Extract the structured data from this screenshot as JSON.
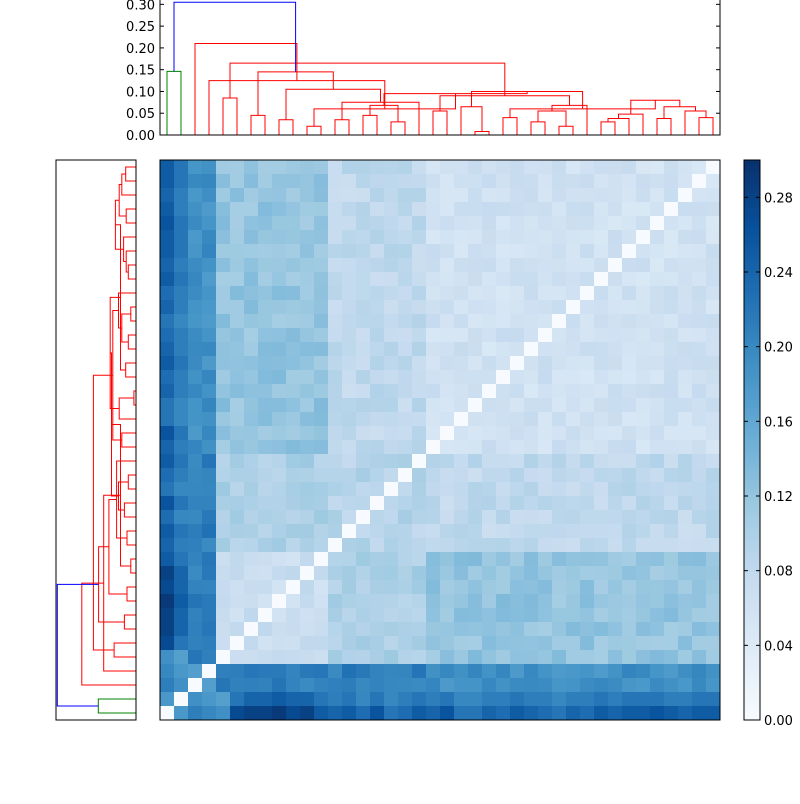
{
  "chart_data": {
    "type": "heatmap",
    "title": "",
    "n": 40,
    "colormap": {
      "name": "Blues",
      "stops": [
        "#f7fbff",
        "#deebf7",
        "#c6dbef",
        "#9ecae1",
        "#6baed6",
        "#4292c6",
        "#2171b5",
        "#08519c",
        "#08306b"
      ]
    },
    "colorbar": {
      "min": 0.0,
      "max": 0.3,
      "ticks": [
        0.0,
        0.04,
        0.08,
        0.12,
        0.16,
        0.2,
        0.24,
        0.28
      ],
      "tick_labels": [
        "0.00",
        "0.04",
        "0.08",
        "0.12",
        "0.16",
        "0.20",
        "0.24",
        "0.28"
      ]
    },
    "top_dendrogram": {
      "ylim": [
        0,
        0.31
      ],
      "ticks": [
        0.0,
        0.05,
        0.1,
        0.15,
        0.2,
        0.25,
        0.3
      ],
      "tick_labels": [
        "0.00",
        "0.05",
        "0.10",
        "0.15",
        "0.20",
        "0.25",
        "0.30"
      ]
    },
    "left_dendrogram": {
      "xlim": [
        0,
        0.31
      ]
    },
    "link_colors": {
      "root": "#0000ff",
      "small_cluster": "#008000",
      "large_cluster": "#ff0000"
    },
    "dendrogram_links": [
      [
        0,
        1,
        0.146
      ],
      [
        39,
        38,
        0.04
      ],
      [
        36,
        35,
        0.038
      ],
      [
        37,
        41,
        0.055
      ],
      [
        43,
        42,
        0.065
      ],
      [
        32,
        31,
        0.03
      ],
      [
        33,
        45,
        0.038
      ],
      [
        34,
        46,
        0.048
      ],
      [
        47,
        44,
        0.08
      ],
      [
        29,
        28,
        0.02
      ],
      [
        27,
        26,
        0.03
      ],
      [
        25,
        24,
        0.04
      ],
      [
        49,
        50,
        0.055
      ],
      [
        48,
        51,
        0.06
      ],
      [
        52,
        30,
        0.068
      ],
      [
        23,
        22,
        0.008
      ],
      [
        20,
        19,
        0.055
      ],
      [
        55,
        21,
        0.065
      ],
      [
        54,
        56,
        0.09
      ],
      [
        53,
        57,
        0.1
      ],
      [
        17,
        16,
        0.03
      ],
      [
        15,
        14,
        0.045
      ],
      [
        13,
        12,
        0.035
      ],
      [
        61,
        60,
        0.068
      ],
      [
        18,
        62,
        0.075
      ],
      [
        59,
        63,
        0.095
      ],
      [
        11,
        10,
        0.02
      ],
      [
        9,
        8,
        0.035
      ],
      [
        7,
        6,
        0.045
      ],
      [
        66,
        65,
        0.06
      ],
      [
        67,
        64,
        0.105
      ],
      [
        5,
        4,
        0.085
      ],
      [
        69,
        3,
        0.125
      ],
      [
        68,
        70,
        0.145
      ],
      [
        58,
        71,
        0.165
      ],
      [
        2,
        72,
        0.21
      ],
      [
        40,
        73,
        0.305
      ]
    ],
    "matrix_model": {
      "cluster_ids": [
        0,
        0,
        1,
        1,
        2,
        2,
        2,
        2,
        2,
        2,
        2,
        2,
        3,
        3,
        3,
        3,
        3,
        3,
        3,
        4,
        4,
        4,
        4,
        4,
        4,
        4,
        4,
        4,
        4,
        4,
        4,
        4,
        4,
        4,
        4,
        4,
        4,
        4,
        4,
        4
      ],
      "within": [
        0.03,
        0.16,
        0.07,
        0.09,
        0.06
      ],
      "between": [
        [
          0.0,
          0.24,
          0.19,
          0.14,
          0.14
        ],
        [
          0.24,
          0.0,
          0.21,
          0.21,
          0.19
        ],
        [
          0.19,
          0.21,
          0.0,
          0.1,
          0.12
        ],
        [
          0.14,
          0.21,
          0.1,
          0.0,
          0.08
        ],
        [
          0.14,
          0.19,
          0.12,
          0.08,
          0.0
        ]
      ],
      "special_rows": [
        [
          0.0,
          0.18,
          0.21,
          0.2,
          0.19,
          0.27,
          0.28,
          0.28,
          0.29,
          0.27,
          0.28,
          0.25,
          0.24,
          0.25,
          0.23,
          0.26,
          0.22,
          0.23,
          0.25,
          0.24,
          0.26,
          0.22,
          0.22,
          0.24,
          0.23,
          0.25,
          0.24,
          0.23,
          0.22,
          0.24,
          0.23,
          0.25,
          0.24,
          0.25,
          0.25,
          0.26,
          0.25,
          0.24,
          0.25,
          0.25
        ],
        [
          0.18,
          0.0,
          0.19,
          0.18,
          0.17,
          0.22,
          0.24,
          0.24,
          0.25,
          0.24,
          0.24,
          0.22,
          0.21,
          0.22,
          0.2,
          0.22,
          0.2,
          0.21,
          0.22,
          0.21,
          0.22,
          0.2,
          0.2,
          0.21,
          0.21,
          0.22,
          0.21,
          0.21,
          0.2,
          0.21,
          0.21,
          0.22,
          0.21,
          0.22,
          0.22,
          0.22,
          0.21,
          0.21,
          0.22,
          0.22
        ]
      ],
      "noise_amplitude": 0.03
    }
  }
}
